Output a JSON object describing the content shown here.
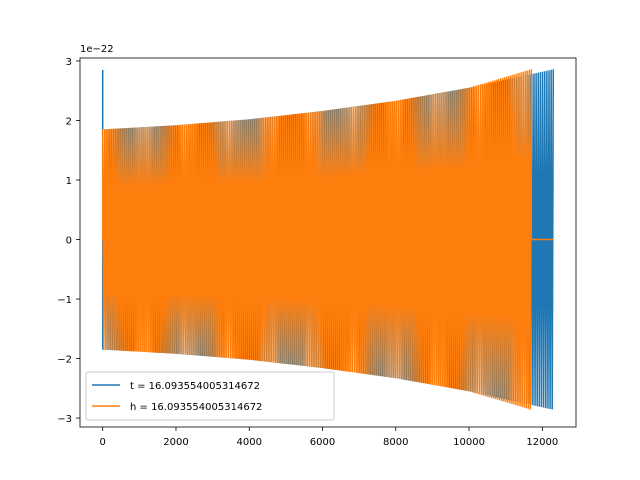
{
  "chart_data": {
    "type": "line",
    "title": "",
    "xlabel": "",
    "ylabel": "",
    "offset_label": "1e−22",
    "xlim": [
      -620,
      12920
    ],
    "ylim": [
      -3.15,
      3.05
    ],
    "xticks": [
      0,
      2000,
      4000,
      6000,
      8000,
      10000,
      12000
    ],
    "xtick_labels": [
      "0",
      "2000",
      "4000",
      "6000",
      "8000",
      "10000",
      "12000"
    ],
    "yticks": [
      -3,
      -2,
      -1,
      0,
      1,
      2,
      3
    ],
    "ytick_labels": [
      "−3",
      "−2",
      "−1",
      "0",
      "1",
      "2",
      "3"
    ],
    "grid": false,
    "legend_position": "lower-left",
    "series": [
      {
        "name": "t = 16.093554005314672",
        "color": "#1f77b4",
        "x_range": [
          0,
          12300
        ],
        "spike_at_start": 2.85,
        "envelope_x": [
          0,
          2000,
          4000,
          6000,
          8000,
          10000,
          12300
        ],
        "envelope_y": [
          1.85,
          1.92,
          2.02,
          2.16,
          2.33,
          2.55,
          2.86
        ],
        "trailing_zero": false
      },
      {
        "name": "h = 16.093554005314672",
        "color": "#ff7f0e",
        "x_range": [
          0,
          11700
        ],
        "spike_at_start": null,
        "envelope_x": [
          0,
          2000,
          4000,
          6000,
          8000,
          10000,
          11700
        ],
        "envelope_y": [
          1.85,
          1.92,
          2.02,
          2.16,
          2.33,
          2.55,
          2.86
        ],
        "trailing_zero": true,
        "trailing_zero_end": 12300
      }
    ]
  }
}
